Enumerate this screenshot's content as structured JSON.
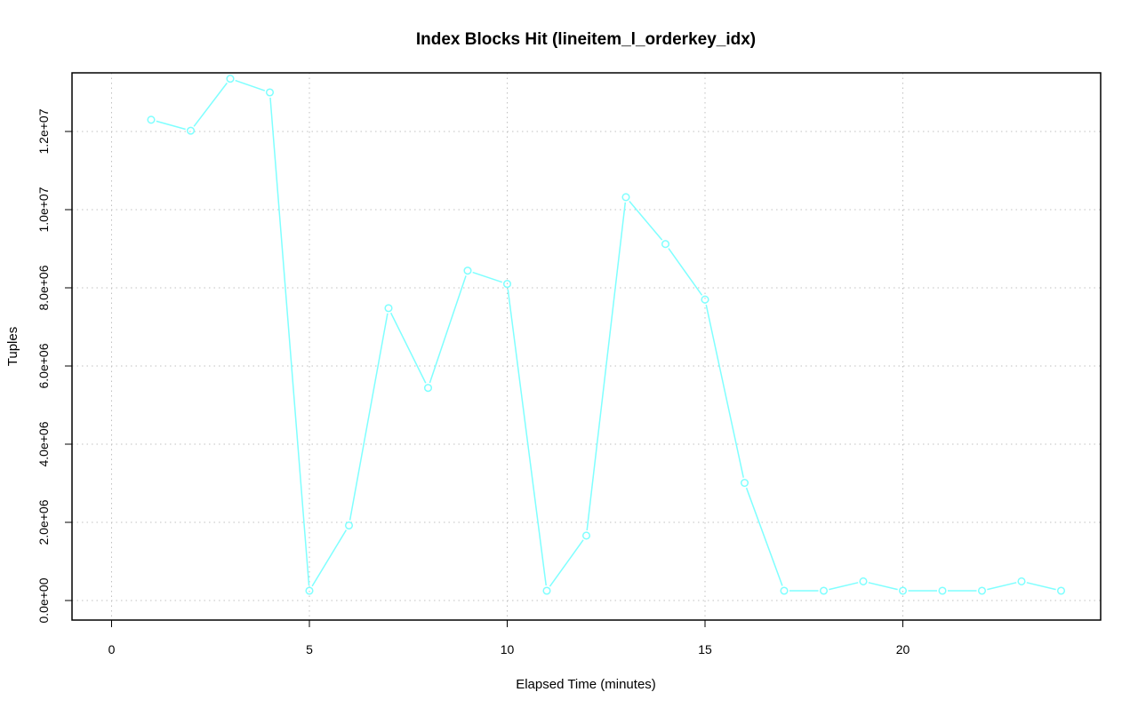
{
  "chart_data": {
    "type": "line",
    "title": "Index Blocks Hit (lineitem_l_orderkey_idx)",
    "xlabel": "Elapsed Time (minutes)",
    "ylabel": "Tuples",
    "xlim": [
      -1,
      25
    ],
    "ylim": [
      -500000,
      13500000
    ],
    "x_ticks": [
      0,
      5,
      10,
      15,
      20
    ],
    "x_tick_labels": [
      "0",
      "5",
      "10",
      "15",
      "20"
    ],
    "y_ticks": [
      0,
      2000000,
      4000000,
      6000000,
      8000000,
      10000000,
      12000000
    ],
    "y_tick_labels": [
      "0.0e+00",
      "2.0e+06",
      "4.0e+06",
      "6.0e+06",
      "8.0e+06",
      "1.0e+07",
      "1.2e+07"
    ],
    "grid": true,
    "series": [
      {
        "color": "#7fffff",
        "marker": "open-circle",
        "x": [
          1,
          2,
          3,
          4,
          5,
          6,
          7,
          8,
          9,
          10,
          11,
          12,
          13,
          14,
          15,
          16,
          17,
          18,
          19,
          20,
          21,
          22,
          23,
          24
        ],
        "values": [
          12300000,
          12020000,
          13350000,
          13000000,
          250000,
          1920000,
          7480000,
          5440000,
          8440000,
          8100000,
          250000,
          1660000,
          10320000,
          9120000,
          7700000,
          3010000,
          250000,
          250000,
          490000,
          250000,
          250000,
          250000,
          490000,
          250000
        ]
      }
    ]
  }
}
